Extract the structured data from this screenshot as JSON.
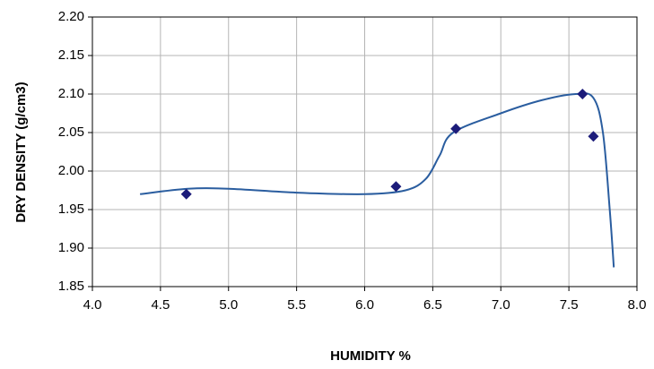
{
  "chart_data": {
    "type": "scatter",
    "xlabel": "HUMIDITY %",
    "ylabel": "DRY DENSITY (g/cm3)",
    "xlim": [
      4.0,
      8.0
    ],
    "ylim": [
      1.85,
      2.2
    ],
    "xticks": [
      {
        "value": 4.0,
        "label": "4.0"
      },
      4.5,
      {
        "value": 5.0,
        "label": "5.0"
      },
      5.5,
      {
        "value": 6.0,
        "label": "6.0"
      },
      6.5,
      {
        "value": 7.0,
        "label": "7.0"
      },
      7.5,
      {
        "value": 8.0,
        "label": "8.0"
      }
    ],
    "yticks": [
      1.85,
      {
        "value": 1.9,
        "label": "1.90"
      },
      1.95,
      {
        "value": 2.0,
        "label": "2.00"
      },
      2.05,
      {
        "value": 2.1,
        "label": "2.10"
      },
      2.15,
      {
        "value": 2.2,
        "label": "2.20"
      }
    ],
    "grid": true,
    "series": [
      {
        "style": "markers",
        "color": "#1c1c7a",
        "x": [
          4.69,
          6.23,
          6.67,
          7.6,
          7.68
        ],
        "values": [
          1.97,
          1.98,
          2.055,
          2.1,
          2.045
        ]
      },
      {
        "style": "smooth-line",
        "color": "#2a5d9f",
        "x": [
          4.35,
          4.7,
          5.0,
          5.5,
          6.0,
          6.3,
          6.45,
          6.55,
          6.65,
          7.0,
          7.3,
          7.55,
          7.68,
          7.75,
          7.8,
          7.83
        ],
        "values": [
          1.97,
          1.977,
          1.977,
          1.972,
          1.97,
          1.975,
          1.99,
          2.02,
          2.05,
          2.075,
          2.092,
          2.1,
          2.095,
          2.05,
          1.95,
          1.875
        ]
      }
    ]
  }
}
